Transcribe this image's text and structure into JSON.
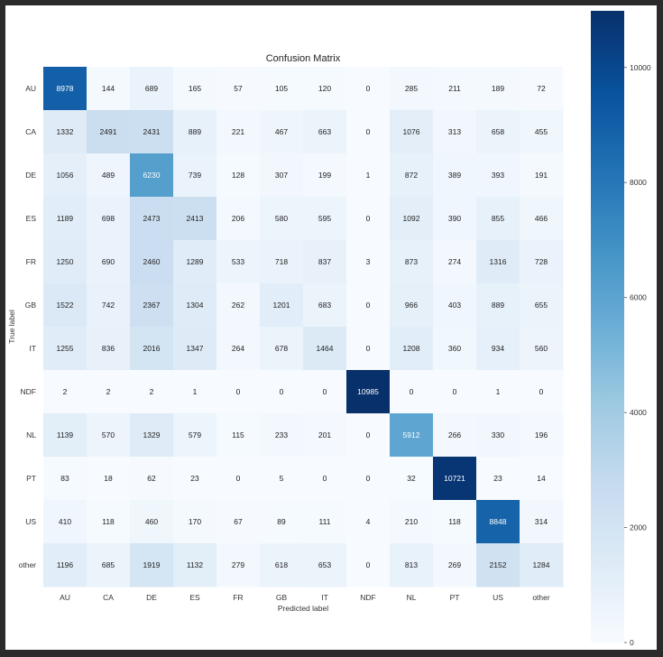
{
  "chart_data": {
    "type": "heatmap",
    "title": "Confusion Matrix",
    "xlabel": "Predicted label",
    "ylabel": "True label",
    "row_labels": [
      "AU",
      "CA",
      "DE",
      "ES",
      "FR",
      "GB",
      "IT",
      "NDF",
      "NL",
      "PT",
      "US",
      "other"
    ],
    "col_labels": [
      "AU",
      "CA",
      "DE",
      "ES",
      "FR",
      "GB",
      "IT",
      "NDF",
      "NL",
      "PT",
      "US",
      "other"
    ],
    "values": [
      [
        8978,
        144,
        689,
        165,
        57,
        105,
        120,
        0,
        285,
        211,
        189,
        72
      ],
      [
        1332,
        2491,
        2431,
        889,
        221,
        467,
        663,
        0,
        1076,
        313,
        658,
        455
      ],
      [
        1056,
        489,
        6230,
        739,
        128,
        307,
        199,
        1,
        872,
        389,
        393,
        191
      ],
      [
        1189,
        698,
        2473,
        2413,
        206,
        580,
        595,
        0,
        1092,
        390,
        855,
        466
      ],
      [
        1250,
        690,
        2460,
        1289,
        533,
        718,
        837,
        3,
        873,
        274,
        1316,
        728
      ],
      [
        1522,
        742,
        2367,
        1304,
        262,
        1201,
        683,
        0,
        966,
        403,
        889,
        655
      ],
      [
        1255,
        836,
        2016,
        1347,
        264,
        678,
        1464,
        0,
        1208,
        360,
        934,
        560
      ],
      [
        2,
        2,
        2,
        1,
        0,
        0,
        0,
        10985,
        0,
        0,
        1,
        0
      ],
      [
        1139,
        570,
        1329,
        579,
        115,
        233,
        201,
        0,
        5912,
        266,
        330,
        196
      ],
      [
        83,
        18,
        62,
        23,
        0,
        5,
        0,
        0,
        32,
        10721,
        23,
        14
      ],
      [
        410,
        118,
        460,
        170,
        67,
        89,
        111,
        4,
        210,
        118,
        8848,
        314
      ],
      [
        1196,
        685,
        1919,
        1132,
        279,
        618,
        653,
        0,
        813,
        269,
        2152,
        1284
      ]
    ],
    "colormap": "Blues",
    "colormap_stops": [
      "#f7fbff",
      "#deebf7",
      "#c6dbef",
      "#9ecae1",
      "#6baed6",
      "#4292c6",
      "#2171b5",
      "#08519c",
      "#08306b"
    ],
    "vmin": 0,
    "vmax": 10985,
    "colorbar_ticks": [
      0,
      2000,
      4000,
      6000,
      8000,
      10000
    ],
    "grid": false
  }
}
